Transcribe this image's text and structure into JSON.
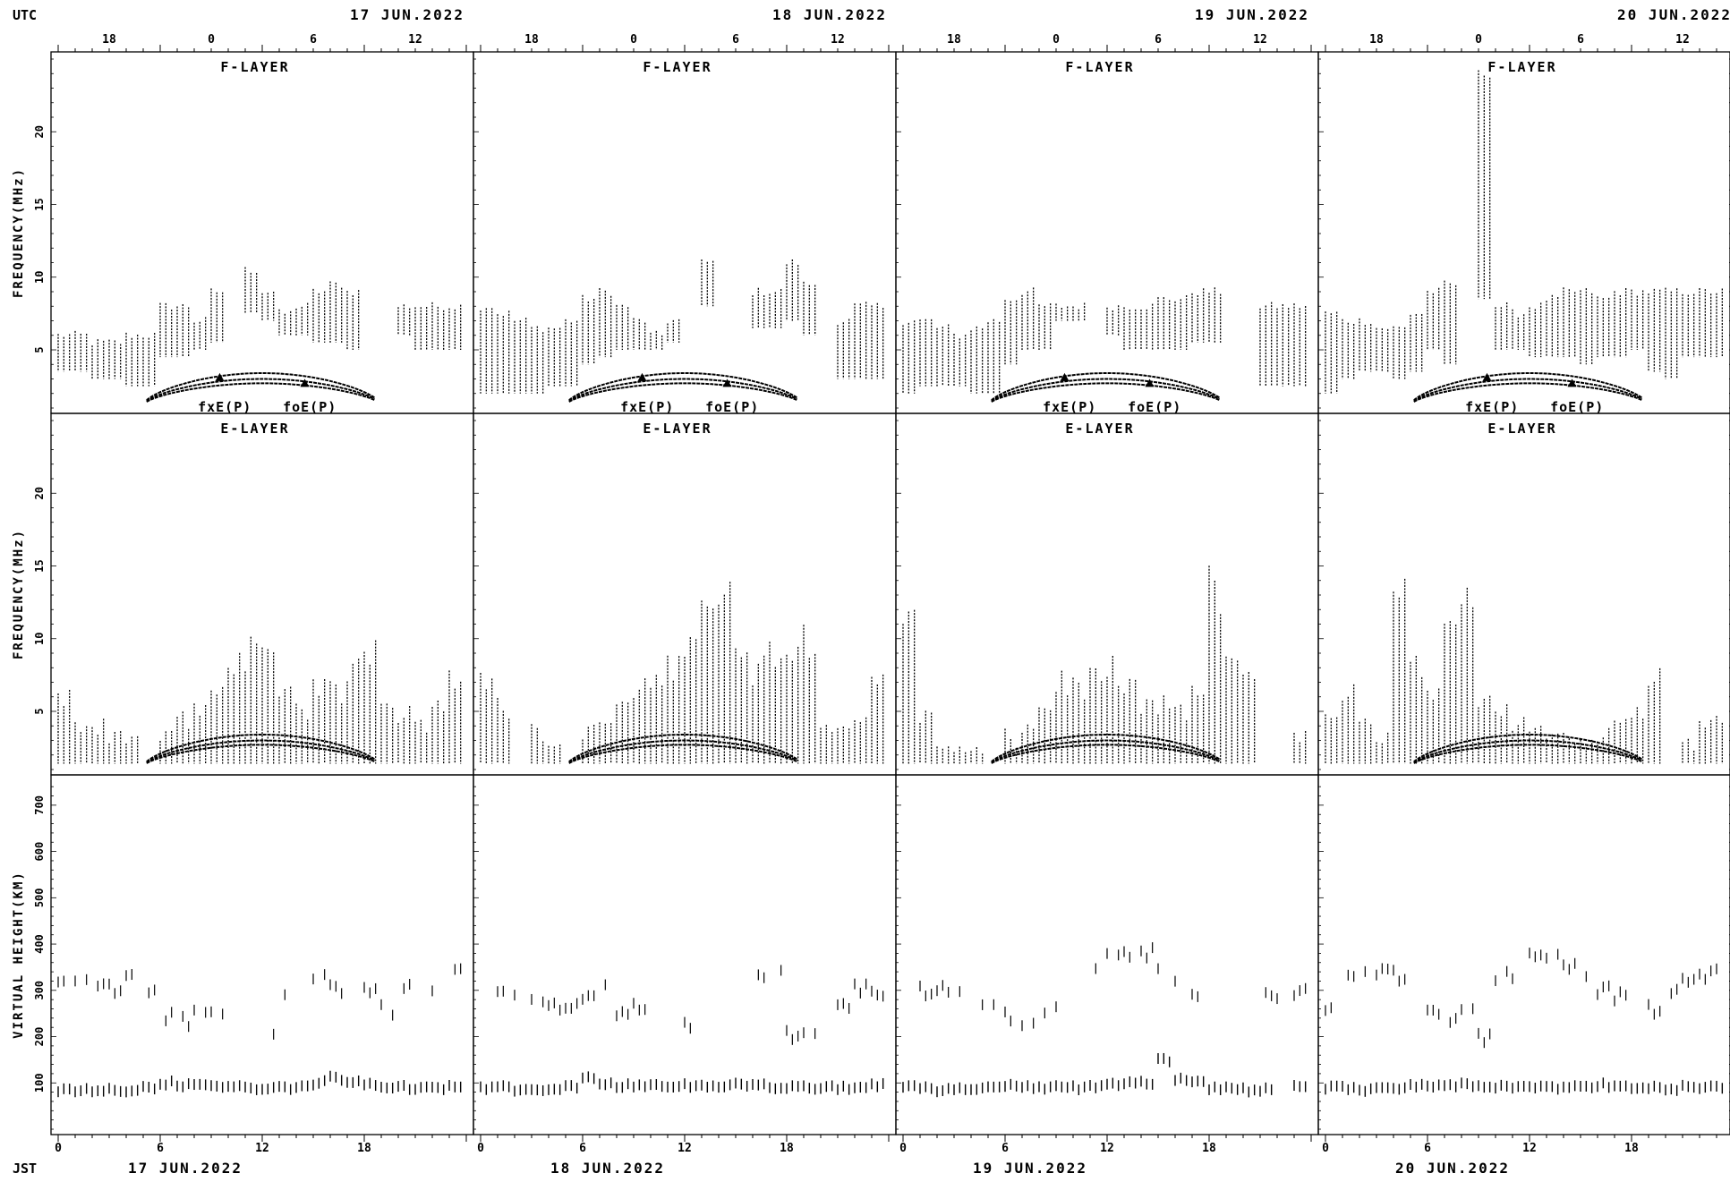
{
  "utc_label": "UTC",
  "jst_label": "JST",
  "days": [
    "17 JUN.2022",
    "18 JUN.2022",
    "19 JUN.2022",
    "20 JUN.2022"
  ],
  "utc_tick_labels": [
    "18",
    "0",
    "6",
    "12"
  ],
  "jst_tick_labels": [
    "0",
    "6",
    "12",
    "18"
  ],
  "chart_data": [
    {
      "type": "scatter",
      "name": "F-LAYER",
      "title": "F-LAYER",
      "ylabel": "FREQUENCY(MHz)",
      "ylim": [
        1,
        25
      ],
      "yticks": [
        5,
        10,
        15,
        20
      ],
      "xlim": [
        0,
        24
      ],
      "curve_labels": [
        "fxE(P)",
        "foE(P)"
      ],
      "days": [
        {
          "day": "17 JUN.2022",
          "hour": [
            0,
            1,
            2,
            3,
            4,
            5,
            6,
            7,
            8,
            9,
            10,
            11,
            12,
            13,
            14,
            15,
            16,
            17,
            18,
            19,
            20,
            21,
            22,
            23
          ],
          "fmin": [
            3.5,
            3.5,
            3.0,
            3.0,
            2.5,
            2.5,
            4.5,
            4.5,
            5.0,
            5.5,
            0,
            7.5,
            7.0,
            6.0,
            6.0,
            5.5,
            5.5,
            5.0,
            5.5,
            0,
            6.0,
            5.0,
            5.0,
            5.0
          ],
          "fmax": [
            6.0,
            6.0,
            5.5,
            5.5,
            6.0,
            6.0,
            8.0,
            8.0,
            7.0,
            9.0,
            0,
            10.5,
            9.0,
            7.5,
            8.0,
            9.0,
            9.5,
            9.0,
            0,
            11.0,
            8.0,
            8.0,
            8.0,
            8.0
          ]
        },
        {
          "day": "18 JUN.2022",
          "hour": [
            0,
            1,
            2,
            3,
            4,
            5,
            6,
            7,
            8,
            9,
            10,
            11,
            12,
            13,
            14,
            15,
            16,
            17,
            18,
            19,
            20,
            21,
            22,
            23
          ],
          "fmin": [
            2.0,
            2.0,
            2.0,
            2.0,
            2.5,
            2.5,
            4.0,
            4.5,
            5.0,
            5.0,
            5.0,
            5.5,
            0,
            8.0,
            0,
            0,
            6.5,
            6.5,
            7.0,
            6.0,
            0,
            3.0,
            3.0,
            3.0
          ],
          "fmax": [
            8.0,
            7.5,
            7.0,
            6.5,
            6.5,
            7.0,
            8.5,
            9.0,
            8.0,
            7.0,
            6.0,
            7.0,
            0,
            11.0,
            0,
            0,
            9.0,
            9.0,
            11.0,
            9.5,
            0,
            7.0,
            8.0,
            8.0
          ]
        },
        {
          "day": "19 JUN.2022",
          "hour": [
            0,
            1,
            2,
            3,
            4,
            5,
            6,
            7,
            8,
            9,
            10,
            11,
            12,
            13,
            14,
            15,
            16,
            17,
            18,
            19,
            20,
            21,
            22,
            23
          ],
          "fmin": [
            2.0,
            2.5,
            2.5,
            2.5,
            2.0,
            2.0,
            4.0,
            5.0,
            5.0,
            7.0,
            7.0,
            0,
            6.0,
            5.0,
            5.0,
            5.0,
            5.0,
            5.5,
            5.5,
            0,
            0,
            2.5,
            2.5,
            2.5
          ],
          "fmax": [
            7.0,
            7.0,
            6.5,
            6.0,
            6.5,
            7.0,
            8.5,
            9.0,
            8.0,
            8.0,
            8.0,
            0,
            8.0,
            8.0,
            8.0,
            8.5,
            8.5,
            9.0,
            9.0,
            0,
            0,
            8.0,
            8.0,
            8.0
          ]
        },
        {
          "day": "20 JUN.2022",
          "hour": [
            0,
            1,
            2,
            3,
            4,
            5,
            6,
            7,
            8,
            9,
            10,
            11,
            12,
            13,
            14,
            15,
            16,
            17,
            18,
            19,
            20,
            21,
            22,
            23
          ],
          "fmin": [
            2.0,
            3.0,
            3.5,
            3.5,
            3.0,
            3.5,
            5.0,
            4.0,
            0,
            8.5,
            5.0,
            5.0,
            4.5,
            4.5,
            4.5,
            4.0,
            4.5,
            4.5,
            5.0,
            3.5,
            3.0,
            4.5,
            4.5,
            4.5
          ],
          "fmax": [
            7.5,
            7.0,
            7.0,
            6.5,
            6.5,
            7.5,
            9.0,
            9.5,
            0,
            24.0,
            8.0,
            7.5,
            8.0,
            8.5,
            9.0,
            9.0,
            8.5,
            9.0,
            9.0,
            9.0,
            9.0,
            9.0,
            9.0,
            9.0
          ]
        }
      ]
    },
    {
      "type": "scatter",
      "name": "E-LAYER",
      "title": "E-LAYER",
      "ylabel": "FREQUENCY(MHz)",
      "ylim": [
        1,
        25
      ],
      "yticks": [
        5,
        10,
        15,
        20
      ],
      "xlim": [
        0,
        24
      ],
      "days": [
        {
          "day": "17 JUN.2022",
          "hour": [
            0,
            1,
            2,
            3,
            4,
            5,
            6,
            7,
            8,
            9,
            10,
            11,
            12,
            13,
            14,
            15,
            16,
            17,
            18,
            19,
            20,
            21,
            22,
            23
          ],
          "fmax": [
            6.5,
            5.0,
            4.5,
            4.0,
            3.5,
            0,
            4.0,
            5.0,
            5.5,
            7.0,
            10.0,
            10.5,
            9.5,
            7.5,
            6.0,
            8.0,
            7.0,
            9.0,
            11.0,
            7.0,
            5.5,
            5.0,
            6.0,
            8.5
          ]
        },
        {
          "day": "18 JUN.2022",
          "hour": [
            0,
            1,
            2,
            3,
            4,
            5,
            6,
            7,
            8,
            9,
            10,
            11,
            12,
            13,
            14,
            15,
            16,
            17,
            18,
            19,
            20,
            21,
            22,
            23
          ],
          "fmax": [
            9.0,
            6.0,
            0,
            4.0,
            3.0,
            0,
            4.0,
            5.0,
            6.0,
            7.0,
            8.0,
            9.5,
            12.0,
            14.5,
            14.0,
            11.0,
            9.0,
            10.5,
            11.0,
            11.5,
            5.0,
            4.0,
            5.0,
            8.5
          ]
        },
        {
          "day": "19 JUN.2022",
          "hour": [
            0,
            1,
            2,
            3,
            4,
            5,
            6,
            7,
            8,
            9,
            10,
            11,
            12,
            13,
            14,
            15,
            16,
            17,
            18,
            19,
            20,
            21,
            22,
            23
          ],
          "fmax": [
            14.5,
            5.0,
            3.0,
            2.5,
            2.5,
            0,
            3.5,
            4.5,
            6.0,
            8.0,
            7.5,
            8.0,
            8.5,
            7.5,
            6.0,
            6.0,
            5.5,
            7.0,
            15.0,
            10.0,
            9.0,
            0,
            0,
            3.5
          ]
        },
        {
          "day": "20 JUN.2022",
          "hour": [
            0,
            1,
            2,
            3,
            4,
            5,
            6,
            7,
            8,
            9,
            10,
            11,
            12,
            13,
            14,
            15,
            16,
            17,
            18,
            19,
            20,
            21,
            22,
            23
          ],
          "fmax": [
            5.5,
            7.0,
            4.5,
            4.0,
            15.5,
            10.0,
            6.5,
            11.5,
            16.0,
            6.5,
            6.0,
            5.0,
            4.5,
            4.0,
            3.5,
            3.5,
            4.0,
            5.0,
            5.5,
            8.5,
            0,
            3.0,
            5.5,
            6.0
          ]
        }
      ]
    },
    {
      "type": "scatter",
      "name": "VIRTUAL HEIGHT",
      "title": "",
      "ylabel": "VIRTUAL HEIGHT(KM)",
      "ylim": [
        0,
        750
      ],
      "yticks": [
        100,
        200,
        300,
        400,
        500,
        600,
        700
      ],
      "xlim": [
        0,
        24
      ],
      "days": [
        {
          "day": "17 JUN.2022",
          "hour": [
            0,
            1,
            2,
            3,
            4,
            5,
            6,
            7,
            8,
            9,
            10,
            11,
            12,
            13,
            14,
            15,
            16,
            17,
            18,
            19,
            20,
            21,
            22,
            23
          ],
          "hF": [
            320,
            330,
            310,
            300,
            320,
            290,
            240,
            230,
            250,
            260,
            0,
            0,
            210,
            300,
            400,
            320,
            300,
            280,
            300,
            260,
            300,
            0,
            300,
            340
          ],
          "hE": [
            85,
            85,
            85,
            85,
            85,
            90,
            100,
            95,
            95,
            95,
            90,
            90,
            90,
            90,
            90,
            100,
            110,
            100,
            95,
            90,
            90,
            90,
            90,
            90
          ]
        },
        {
          "day": "18 JUN.2022",
          "hour": [
            0,
            1,
            2,
            3,
            4,
            5,
            6,
            7,
            8,
            9,
            10,
            11,
            12,
            13,
            14,
            15,
            16,
            17,
            18,
            19,
            20,
            21,
            22,
            23
          ],
          "hF": [
            0,
            300,
            280,
            270,
            270,
            270,
            280,
            300,
            250,
            260,
            0,
            0,
            220,
            0,
            0,
            0,
            340,
            330,
            200,
            200,
            0,
            270,
            300,
            300
          ],
          "hE": [
            90,
            90,
            85,
            85,
            85,
            90,
            110,
            100,
            95,
            95,
            95,
            95,
            95,
            95,
            95,
            95,
            95,
            90,
            90,
            90,
            90,
            90,
            90,
            95
          ]
        },
        {
          "day": "19 JUN.2022",
          "hour": [
            0,
            1,
            2,
            3,
            4,
            5,
            6,
            7,
            8,
            9,
            10,
            11,
            12,
            13,
            14,
            15,
            16,
            17,
            18,
            19,
            20,
            21,
            22,
            23
          ],
          "hF": [
            0,
            300,
            310,
            290,
            280,
            260,
            240,
            230,
            250,
            270,
            0,
            360,
            370,
            380,
            380,
            350,
            330,
            300,
            0,
            0,
            0,
            290,
            280,
            300
          ],
          "hE": [
            90,
            90,
            85,
            85,
            90,
            90,
            95,
            90,
            90,
            90,
            90,
            90,
            95,
            100,
            100,
            150,
            110,
            100,
            90,
            90,
            85,
            85,
            0,
            95
          ]
        },
        {
          "day": "20 JUN.2022",
          "hour": [
            0,
            1,
            2,
            3,
            4,
            5,
            6,
            7,
            8,
            9,
            10,
            11,
            12,
            13,
            14,
            15,
            16,
            17,
            18,
            19,
            20,
            21,
            22,
            23
          ],
          "hF": [
            270,
            320,
            330,
            340,
            330,
            0,
            260,
            240,
            270,
            200,
            330,
            340,
            370,
            370,
            350,
            320,
            300,
            290,
            300,
            260,
            290,
            320,
            330,
            340
          ],
          "hE": [
            90,
            90,
            85,
            85,
            90,
            95,
            95,
            95,
            95,
            95,
            90,
            90,
            90,
            90,
            90,
            90,
            95,
            95,
            90,
            90,
            85,
            90,
            90,
            90
          ]
        }
      ]
    }
  ]
}
